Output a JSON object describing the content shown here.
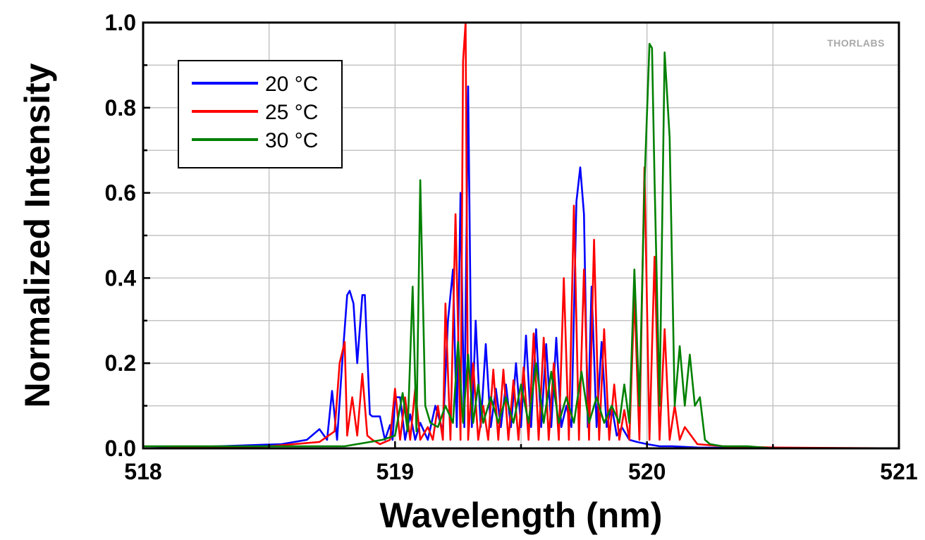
{
  "chart_data": {
    "type": "line",
    "title": "",
    "xlabel": "Wavelength (nm)",
    "ylabel": "Normalized Intensity",
    "xlim": [
      518,
      521
    ],
    "ylim": [
      0,
      1.0
    ],
    "x_ticks": [
      518,
      519,
      520,
      521
    ],
    "x_tick_labels": [
      "518",
      "519",
      "520",
      "521"
    ],
    "y_ticks": [
      0.0,
      0.2,
      0.4,
      0.6,
      0.8,
      1.0
    ],
    "y_tick_labels": [
      "0.0",
      "0.2",
      "0.4",
      "0.6",
      "0.8",
      "1.0"
    ],
    "grid": true,
    "legend_position": "top-left",
    "watermark": "THORLABS",
    "series": [
      {
        "name": "20 °C",
        "color": "#0000ff",
        "x": [
          518.0,
          518.3,
          518.55,
          518.65,
          518.7,
          518.73,
          518.75,
          518.77,
          518.79,
          518.81,
          518.82,
          518.835,
          518.85,
          518.87,
          518.88,
          518.9,
          518.91,
          518.925,
          518.94,
          518.96,
          518.98,
          518.99,
          519.0,
          519.02,
          519.04,
          519.06,
          519.08,
          519.1,
          519.13,
          519.16,
          519.19,
          519.21,
          519.23,
          519.245,
          519.26,
          519.275,
          519.29,
          519.305,
          519.32,
          519.34,
          519.36,
          519.38,
          519.4,
          519.42,
          519.44,
          519.46,
          519.48,
          519.5,
          519.52,
          519.54,
          519.56,
          519.58,
          519.6,
          519.62,
          519.64,
          519.66,
          519.68,
          519.7,
          519.72,
          519.735,
          519.75,
          519.765,
          519.78,
          519.8,
          519.82,
          519.84,
          519.86,
          519.88,
          519.9,
          519.93,
          519.96,
          520.0,
          520.05,
          520.1,
          520.2,
          520.5,
          521.0
        ],
        "y": [
          0.0,
          0.005,
          0.01,
          0.02,
          0.045,
          0.02,
          0.135,
          0.02,
          0.2,
          0.36,
          0.37,
          0.34,
          0.2,
          0.36,
          0.36,
          0.08,
          0.075,
          0.075,
          0.075,
          0.02,
          0.055,
          0.02,
          0.12,
          0.12,
          0.02,
          0.08,
          0.02,
          0.06,
          0.02,
          0.1,
          0.04,
          0.3,
          0.42,
          0.05,
          0.6,
          0.05,
          0.85,
          0.05,
          0.3,
          0.05,
          0.245,
          0.05,
          0.14,
          0.05,
          0.15,
          0.05,
          0.2,
          0.05,
          0.265,
          0.05,
          0.28,
          0.05,
          0.245,
          0.05,
          0.26,
          0.05,
          0.1,
          0.05,
          0.58,
          0.66,
          0.55,
          0.05,
          0.38,
          0.05,
          0.25,
          0.05,
          0.1,
          0.03,
          0.05,
          0.02,
          0.015,
          0.01,
          0.005,
          0.005,
          0.002,
          0.0,
          0.0
        ]
      },
      {
        "name": "25 °C",
        "color": "#ff0000",
        "x": [
          518.0,
          518.5,
          518.7,
          518.76,
          518.78,
          518.8,
          518.81,
          518.83,
          518.85,
          518.87,
          518.89,
          518.91,
          518.94,
          518.98,
          519.0,
          519.02,
          519.04,
          519.06,
          519.08,
          519.1,
          519.13,
          519.15,
          519.17,
          519.19,
          519.2,
          519.22,
          519.24,
          519.26,
          519.27,
          519.28,
          519.29,
          519.31,
          519.33,
          519.35,
          519.37,
          519.39,
          519.41,
          519.43,
          519.45,
          519.47,
          519.49,
          519.51,
          519.53,
          519.55,
          519.57,
          519.59,
          519.61,
          519.63,
          519.65,
          519.67,
          519.69,
          519.71,
          519.73,
          519.75,
          519.77,
          519.79,
          519.81,
          519.83,
          519.85,
          519.87,
          519.89,
          519.91,
          519.93,
          519.95,
          519.97,
          519.99,
          520.01,
          520.03,
          520.05,
          520.07,
          520.09,
          520.11,
          520.13,
          520.15,
          520.2,
          520.3,
          520.5,
          521.0
        ],
        "y": [
          0.0,
          0.005,
          0.015,
          0.04,
          0.2,
          0.25,
          0.03,
          0.12,
          0.03,
          0.175,
          0.03,
          0.02,
          0.01,
          0.02,
          0.14,
          0.02,
          0.12,
          0.02,
          0.14,
          0.02,
          0.05,
          0.02,
          0.1,
          0.02,
          0.34,
          0.02,
          0.55,
          0.02,
          0.91,
          1.0,
          0.02,
          0.2,
          0.02,
          0.1,
          0.02,
          0.185,
          0.02,
          0.185,
          0.02,
          0.16,
          0.02,
          0.19,
          0.02,
          0.27,
          0.02,
          0.26,
          0.02,
          0.2,
          0.02,
          0.4,
          0.02,
          0.57,
          0.02,
          0.42,
          0.02,
          0.49,
          0.02,
          0.28,
          0.02,
          0.15,
          0.02,
          0.09,
          0.02,
          0.36,
          0.02,
          0.66,
          0.02,
          0.45,
          0.02,
          0.28,
          0.02,
          0.1,
          0.02,
          0.05,
          0.01,
          0.005,
          0.002,
          0.0
        ]
      },
      {
        "name": "30 °C",
        "color": "#008000",
        "x": [
          518.0,
          518.8,
          518.95,
          519.0,
          519.03,
          519.05,
          519.07,
          519.085,
          519.1,
          519.12,
          519.14,
          519.17,
          519.2,
          519.23,
          519.25,
          519.27,
          519.29,
          519.31,
          519.33,
          519.35,
          519.38,
          519.41,
          519.44,
          519.47,
          519.5,
          519.53,
          519.56,
          519.59,
          519.62,
          519.65,
          519.68,
          519.71,
          519.74,
          519.77,
          519.8,
          519.83,
          519.86,
          519.89,
          519.91,
          519.93,
          519.95,
          519.97,
          519.99,
          520.01,
          520.02,
          520.03,
          520.05,
          520.07,
          520.09,
          520.11,
          520.13,
          520.15,
          520.17,
          520.19,
          520.21,
          520.23,
          520.25,
          520.3,
          520.4,
          520.5,
          521.0
        ],
        "y": [
          0.005,
          0.005,
          0.02,
          0.03,
          0.13,
          0.04,
          0.38,
          0.04,
          0.63,
          0.1,
          0.06,
          0.05,
          0.1,
          0.06,
          0.25,
          0.06,
          0.22,
          0.06,
          0.15,
          0.06,
          0.12,
          0.06,
          0.12,
          0.06,
          0.15,
          0.06,
          0.2,
          0.06,
          0.18,
          0.06,
          0.12,
          0.06,
          0.18,
          0.06,
          0.12,
          0.06,
          0.1,
          0.06,
          0.15,
          0.06,
          0.42,
          0.1,
          0.62,
          0.95,
          0.94,
          0.63,
          0.1,
          0.93,
          0.73,
          0.1,
          0.24,
          0.1,
          0.22,
          0.1,
          0.12,
          0.02,
          0.01,
          0.005,
          0.005,
          0.0,
          0.0
        ]
      }
    ]
  }
}
